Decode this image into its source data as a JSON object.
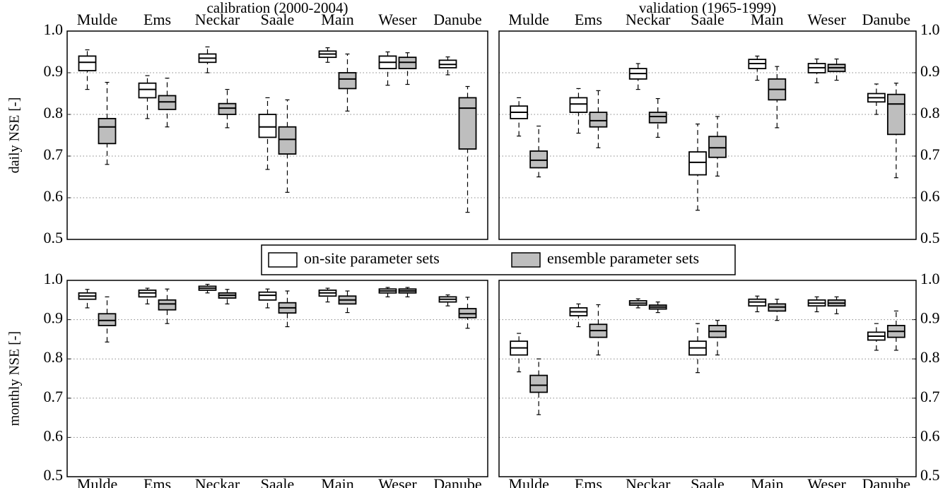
{
  "chart_data": [
    {
      "type": "box",
      "title": "calibration (2000-2004)",
      "ylabel": "daily NSE [-]",
      "xaxis_side": "top",
      "yaxis_side": "left",
      "grid": true,
      "categories": [
        "Mulde",
        "Ems",
        "Neckar",
        "Saale",
        "Main",
        "Weser",
        "Danube"
      ],
      "ylim": [
        0.5,
        1.0
      ],
      "yticks": [
        0.5,
        0.6,
        0.7,
        0.8,
        0.9,
        {
          "value": 1.0,
          "label": "1.0"
        }
      ],
      "series": [
        {
          "name": "on-site parameter sets",
          "color": "#ffffff",
          "values": [
            [
              0.86,
              0.905,
              0.925,
              0.94,
              0.955
            ],
            [
              0.79,
              0.84,
              0.86,
              0.875,
              0.893
            ],
            [
              0.9,
              0.925,
              0.935,
              0.945,
              0.962
            ],
            [
              0.668,
              0.745,
              0.77,
              0.8,
              0.84
            ],
            [
              0.925,
              0.937,
              0.945,
              0.952,
              0.96
            ],
            [
              0.87,
              0.91,
              0.925,
              0.94,
              0.95
            ],
            [
              0.895,
              0.912,
              0.92,
              0.93,
              0.938
            ]
          ]
        },
        {
          "name": "ensemble parameter sets",
          "color": "#bebebe",
          "values": [
            [
              0.68,
              0.73,
              0.77,
              0.79,
              0.877
            ],
            [
              0.77,
              0.812,
              0.83,
              0.845,
              0.887
            ],
            [
              0.768,
              0.8,
              0.815,
              0.826,
              0.86
            ],
            [
              0.613,
              0.705,
              0.74,
              0.77,
              0.835
            ],
            [
              0.808,
              0.862,
              0.885,
              0.9,
              0.945
            ],
            [
              0.872,
              0.91,
              0.925,
              0.937,
              0.948
            ],
            [
              0.565,
              0.717,
              0.815,
              0.84,
              0.867
            ]
          ]
        }
      ]
    },
    {
      "type": "box",
      "title": "validation (1965-1999)",
      "xaxis_side": "top",
      "yaxis_side": "right",
      "grid": true,
      "categories": [
        "Mulde",
        "Ems",
        "Neckar",
        "Saale",
        "Main",
        "Weser",
        "Danube"
      ],
      "ylim": [
        0.5,
        1.0
      ],
      "yticks": [
        0.5,
        0.6,
        0.7,
        0.8,
        0.9,
        {
          "value": 1.0,
          "label": "1.0"
        }
      ],
      "series": [
        {
          "color": "#ffffff",
          "values": [
            [
              0.748,
              0.79,
              0.805,
              0.82,
              0.84
            ],
            [
              0.755,
              0.805,
              0.825,
              0.84,
              0.862
            ],
            [
              0.86,
              0.885,
              0.898,
              0.91,
              0.922
            ],
            [
              0.57,
              0.655,
              0.685,
              0.71,
              0.777
            ],
            [
              0.882,
              0.91,
              0.922,
              0.932,
              0.94
            ],
            [
              0.876,
              0.9,
              0.912,
              0.922,
              0.933
            ],
            [
              0.8,
              0.83,
              0.84,
              0.85,
              0.873
            ]
          ]
        },
        {
          "color": "#bebebe",
          "values": [
            [
              0.65,
              0.672,
              0.69,
              0.712,
              0.772
            ],
            [
              0.72,
              0.77,
              0.785,
              0.805,
              0.857
            ],
            [
              0.745,
              0.78,
              0.795,
              0.805,
              0.838
            ],
            [
              0.652,
              0.697,
              0.72,
              0.747,
              0.795
            ],
            [
              0.768,
              0.835,
              0.86,
              0.885,
              0.915
            ],
            [
              0.882,
              0.903,
              0.912,
              0.92,
              0.933
            ],
            [
              0.648,
              0.752,
              0.825,
              0.848,
              0.875
            ]
          ]
        }
      ]
    },
    {
      "type": "box",
      "ylabel": "monthly NSE [-]",
      "xaxis_side": "bottom",
      "yaxis_side": "left",
      "grid": true,
      "categories": [
        "Mulde",
        "Ems",
        "Neckar",
        "Saale",
        "Main",
        "Weser",
        "Danube"
      ],
      "ylim": [
        0.5,
        1.0
      ],
      "yticks": [
        0.5,
        0.6,
        0.7,
        0.8,
        0.9,
        {
          "value": 1.0,
          "label": "1.0"
        }
      ],
      "series": [
        {
          "color": "#ffffff",
          "values": [
            [
              0.93,
              0.952,
              0.96,
              0.968,
              0.977
            ],
            [
              0.94,
              0.958,
              0.968,
              0.975,
              0.98
            ],
            [
              0.968,
              0.975,
              0.98,
              0.985,
              0.99
            ],
            [
              0.93,
              0.95,
              0.962,
              0.97,
              0.978
            ],
            [
              0.945,
              0.96,
              0.968,
              0.975,
              0.98
            ],
            [
              0.958,
              0.968,
              0.973,
              0.978,
              0.982
            ],
            [
              0.935,
              0.945,
              0.952,
              0.958,
              0.963
            ]
          ]
        },
        {
          "color": "#bebebe",
          "values": [
            [
              0.843,
              0.885,
              0.898,
              0.915,
              0.958
            ],
            [
              0.89,
              0.925,
              0.94,
              0.95,
              0.978
            ],
            [
              0.94,
              0.955,
              0.962,
              0.968,
              0.977
            ],
            [
              0.882,
              0.917,
              0.93,
              0.943,
              0.973
            ],
            [
              0.918,
              0.94,
              0.95,
              0.96,
              0.973
            ],
            [
              0.958,
              0.968,
              0.973,
              0.978,
              0.982
            ],
            [
              0.878,
              0.905,
              0.915,
              0.928,
              0.957
            ]
          ]
        }
      ]
    },
    {
      "type": "box",
      "xaxis_side": "bottom",
      "yaxis_side": "right",
      "grid": true,
      "categories": [
        "Mulde",
        "Ems",
        "Neckar",
        "Saale",
        "Main",
        "Weser",
        "Danube"
      ],
      "ylim": [
        0.5,
        1.0
      ],
      "yticks": [
        0.5,
        0.6,
        0.7,
        0.8,
        0.9,
        {
          "value": 1.0,
          "label": "1.0"
        }
      ],
      "series": [
        {
          "color": "#ffffff",
          "values": [
            [
              0.767,
              0.81,
              0.828,
              0.845,
              0.865
            ],
            [
              0.882,
              0.91,
              0.92,
              0.93,
              0.94
            ],
            [
              0.93,
              0.937,
              0.942,
              0.948,
              0.953
            ],
            [
              0.765,
              0.81,
              0.828,
              0.845,
              0.89
            ],
            [
              0.92,
              0.935,
              0.945,
              0.952,
              0.96
            ],
            [
              0.92,
              0.935,
              0.942,
              0.95,
              0.958
            ],
            [
              0.822,
              0.848,
              0.858,
              0.868,
              0.89
            ]
          ]
        },
        {
          "color": "#bebebe",
          "values": [
            [
              0.658,
              0.715,
              0.733,
              0.758,
              0.8
            ],
            [
              0.81,
              0.855,
              0.872,
              0.888,
              0.938
            ],
            [
              0.918,
              0.927,
              0.932,
              0.937,
              0.945
            ],
            [
              0.81,
              0.855,
              0.87,
              0.885,
              0.898
            ],
            [
              0.898,
              0.922,
              0.932,
              0.94,
              0.952
            ],
            [
              0.915,
              0.935,
              0.942,
              0.95,
              0.958
            ],
            [
              0.822,
              0.855,
              0.87,
              0.885,
              0.922
            ]
          ]
        }
      ]
    }
  ]
}
